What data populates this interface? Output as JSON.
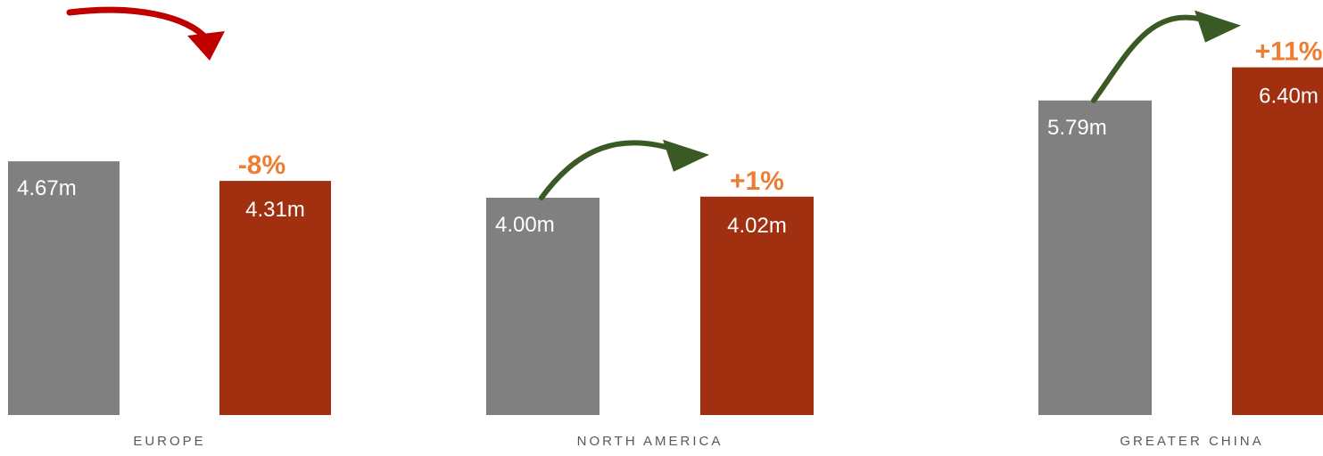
{
  "chart_data": {
    "type": "bar",
    "title": "",
    "xlabel": "",
    "ylabel": "",
    "ylim": [
      0,
      6.4
    ],
    "grid": false,
    "legend": "none",
    "colors": {
      "previous": "#808080",
      "current": "#A03010",
      "change_label": "#ED7D31",
      "arrow_down": "#C00000",
      "arrow_up": "#3A5A24",
      "category_label": "#595959",
      "value_label": "#FFFFFF"
    },
    "categories": [
      "EUROPE",
      "NORTH AMERICA",
      "GREATER CHINA"
    ],
    "series": [
      {
        "values": [
          4.67,
          4.0,
          5.79
        ],
        "labels": [
          "4.67m",
          "4.00m",
          "5.79m"
        ]
      },
      {
        "values": [
          4.31,
          4.02,
          6.4
        ],
        "labels": [
          "4.31m",
          "4.02m",
          "6.40m"
        ]
      }
    ],
    "changes": [
      {
        "label": "-8%",
        "direction": "down"
      },
      {
        "label": "+1%",
        "direction": "up"
      },
      {
        "label": "+11%",
        "direction": "up"
      }
    ]
  }
}
